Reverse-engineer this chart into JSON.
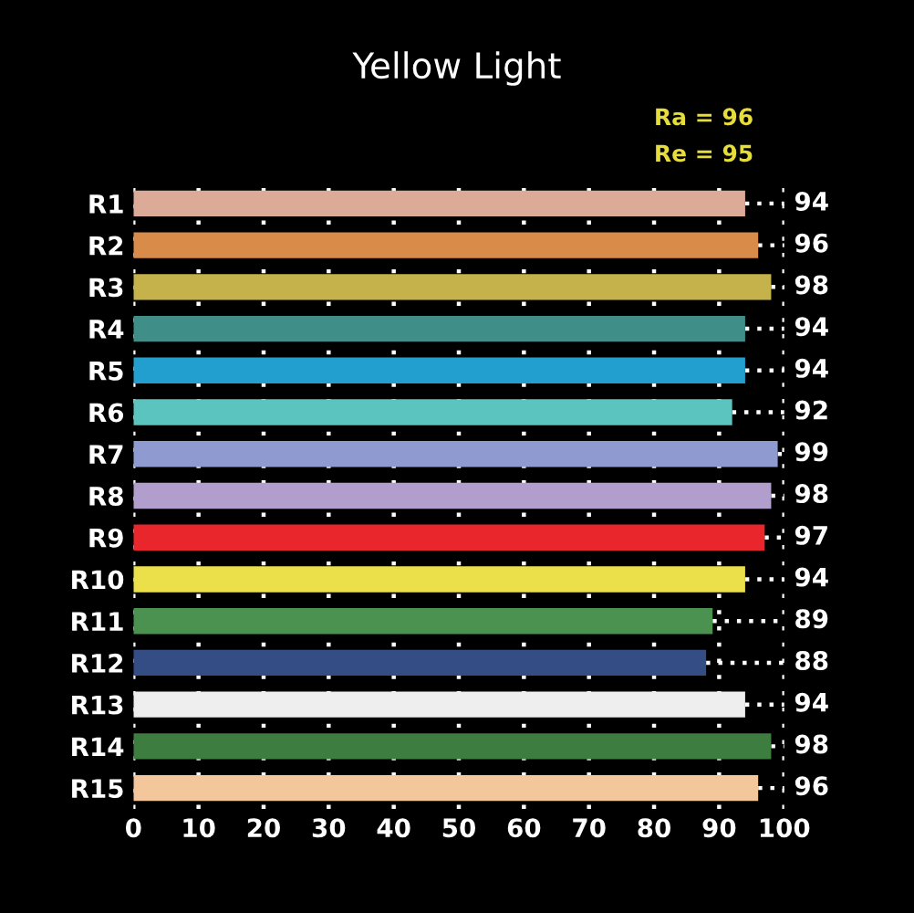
{
  "chart_data": {
    "type": "bar",
    "orientation": "horizontal",
    "title": "Yellow Light",
    "annotations": [
      "Ra = 96",
      "Re = 95"
    ],
    "categories": [
      "R1",
      "R2",
      "R3",
      "R4",
      "R5",
      "R6",
      "R7",
      "R8",
      "R9",
      "R10",
      "R11",
      "R12",
      "R13",
      "R14",
      "R15"
    ],
    "values": [
      94,
      96,
      98,
      94,
      94,
      92,
      99,
      98,
      97,
      94,
      89,
      88,
      94,
      98,
      96
    ],
    "colors": [
      "#dcab98",
      "#d98c4a",
      "#c6b24a",
      "#3f8f88",
      "#229fce",
      "#5cc4be",
      "#8f9bd0",
      "#b29ecc",
      "#e8262c",
      "#ece04a",
      "#4b9150",
      "#354d85",
      "#eeeeee",
      "#3e7d40",
      "#f3c69c"
    ],
    "xlim": [
      0,
      100
    ],
    "xticks": [
      0,
      10,
      20,
      30,
      40,
      50,
      60,
      70,
      80,
      90,
      100
    ],
    "grid": "x",
    "data_labels": true
  }
}
